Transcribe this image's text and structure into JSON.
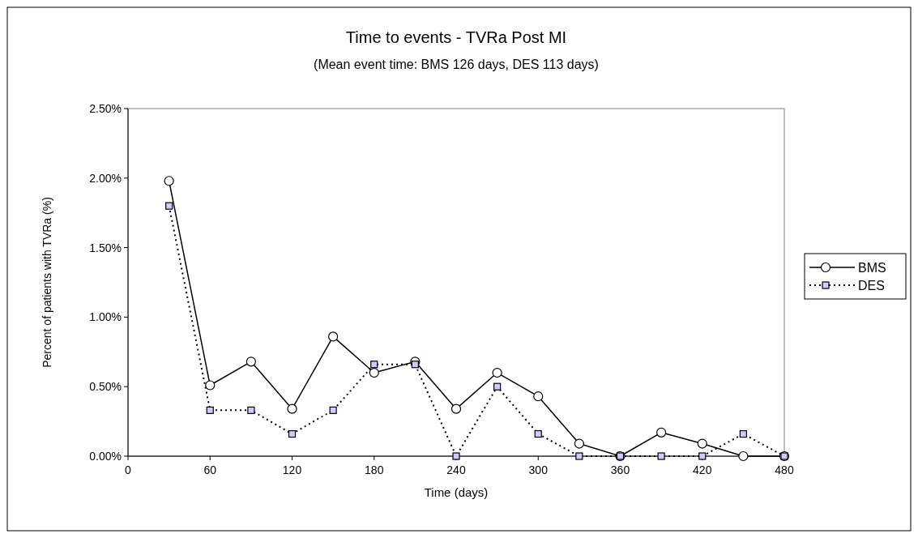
{
  "chart_data": {
    "type": "line",
    "title": "Time to events - TVRa Post MI",
    "subtitle": "(Mean event time:  BMS 126 days, DES 113 days)",
    "xlabel": "Time (days)",
    "ylabel": "Percent of patients with TVRa (%)",
    "x": [
      30,
      60,
      90,
      120,
      150,
      180,
      210,
      240,
      270,
      300,
      330,
      360,
      390,
      420,
      450,
      480
    ],
    "xlim": [
      0,
      480
    ],
    "xticks": [
      0,
      60,
      120,
      180,
      240,
      300,
      360,
      420,
      480
    ],
    "ylim": [
      0,
      0.025
    ],
    "yticks": [
      {
        "value": 0,
        "label": "0.00%"
      },
      {
        "value": 0.005,
        "label": "0.50%"
      },
      {
        "value": 0.01,
        "label": "1.00%"
      },
      {
        "value": 0.015,
        "label": "1.50%"
      },
      {
        "value": 0.02,
        "label": "2.00%"
      },
      {
        "value": 0.025,
        "label": "2.50%"
      }
    ],
    "grid": false,
    "legend": "right",
    "series": [
      {
        "name": "BMS",
        "color": "#000000",
        "marker": "circle",
        "line_style": "solid",
        "values": [
          0.0198,
          0.0051,
          0.0068,
          0.0034,
          0.0086,
          0.006,
          0.0068,
          0.0034,
          0.006,
          0.0043,
          0.0009,
          0,
          0.0017,
          0.0009,
          0,
          0
        ]
      },
      {
        "name": "DES",
        "color": "#000000",
        "marker": "square",
        "line_style": "dotted",
        "values": [
          0.018,
          0.0033,
          0.0033,
          0.0016,
          0.0033,
          0.0066,
          0.0066,
          0,
          0.005,
          0.0016,
          0,
          0,
          0,
          0,
          0.0016,
          0
        ]
      }
    ]
  }
}
